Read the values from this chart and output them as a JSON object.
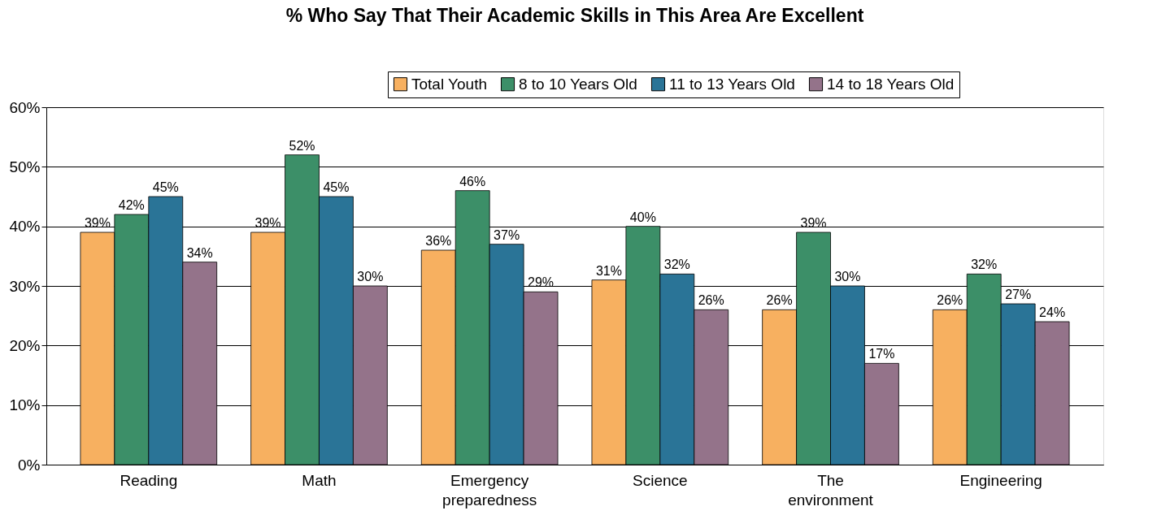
{
  "chart_data": {
    "type": "bar",
    "title": "% Who Say That Their Academic Skills in This Area Are Excellent",
    "categories": [
      "Reading",
      "Math",
      "Emergency preparedness",
      "Science",
      "The environment",
      "Engineering"
    ],
    "series": [
      {
        "name": "Total Youth",
        "color": "#f7b060",
        "values": [
          39,
          39,
          36,
          31,
          26,
          26
        ],
        "value_labels": [
          "39%",
          "39%",
          "36%",
          "31%",
          "26%",
          "26%"
        ]
      },
      {
        "name": "8 to 10 Years Old",
        "color": "#3c8f68",
        "values": [
          42,
          52,
          46,
          40,
          39,
          32
        ],
        "value_labels": [
          "42%",
          "52%",
          "46%",
          "40%",
          "39%",
          "32%"
        ]
      },
      {
        "name": "11 to 13 Years Old",
        "color": "#2a7497",
        "values": [
          45,
          45,
          37,
          32,
          30,
          27
        ],
        "value_labels": [
          "45%",
          "45%",
          "37%",
          "32%",
          "30%",
          "27%"
        ]
      },
      {
        "name": "14 to 18 Years Old",
        "color": "#94738a",
        "values": [
          34,
          30,
          29,
          26,
          17,
          24
        ],
        "value_labels": [
          "34%",
          "30%",
          "29%",
          "26%",
          "17%",
          "24%"
        ]
      }
    ],
    "ylim": [
      0,
      60
    ],
    "yticks": [
      {
        "value": 0,
        "label": "0%"
      },
      {
        "value": 10,
        "label": "10%"
      },
      {
        "value": 20,
        "label": "20%"
      },
      {
        "value": 30,
        "label": "30%"
      },
      {
        "value": 40,
        "label": "40%"
      },
      {
        "value": 50,
        "label": "50%"
      },
      {
        "value": 60,
        "label": "60%"
      }
    ],
    "grid": "y",
    "legend": "top right"
  }
}
